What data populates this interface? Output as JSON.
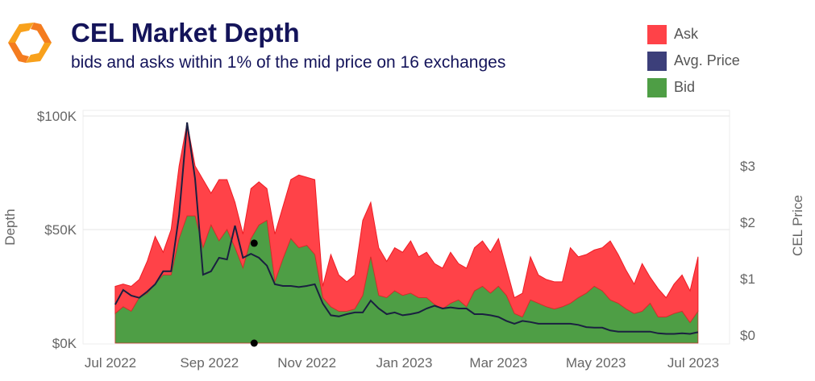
{
  "header": {
    "title": "CEL Market Depth",
    "subtitle": "bids and asks within 1% of the mid price on 16 exchanges"
  },
  "legend": [
    {
      "label": "Ask",
      "color": "#ff4248"
    },
    {
      "label": "Avg. Price",
      "color": "#3c3f7a"
    },
    {
      "label": "Bid",
      "color": "#4e9e45"
    }
  ],
  "chart_data": {
    "type": "area",
    "title": "CEL Market Depth",
    "ylabel": "Depth",
    "y2label": "CEL Price",
    "x_start": "2022-07-04",
    "x_step_days": 5,
    "ylim": [
      0,
      100
    ],
    "y2lim": [
      0,
      3.8
    ],
    "yticks": [
      {
        "value": 0,
        "label": "$0K"
      },
      {
        "value": 50,
        "label": "$50K"
      },
      {
        "value": 100,
        "label": "$100K"
      }
    ],
    "y2ticks": [
      {
        "value": 0,
        "label": "$0"
      },
      {
        "value": 1,
        "label": "$1"
      },
      {
        "value": 2,
        "label": "$2"
      },
      {
        "value": 3,
        "label": "$3"
      }
    ],
    "xticks": [
      {
        "day": -3,
        "label": "Jul 2022"
      },
      {
        "day": 59,
        "label": "Sep 2022"
      },
      {
        "day": 120,
        "label": "Nov 2022"
      },
      {
        "day": 181,
        "label": "Jan 2023"
      },
      {
        "day": 240,
        "label": "Mar 2023"
      },
      {
        "day": 301,
        "label": "May 2023"
      },
      {
        "day": 362,
        "label": "Jul 2023"
      }
    ],
    "series": [
      {
        "name": "Bid",
        "unit": "K USD",
        "stacked": true,
        "values": [
          13,
          16,
          14,
          20,
          22,
          26,
          30,
          30,
          46,
          56,
          56,
          42,
          52,
          45,
          50,
          42,
          33,
          46,
          52,
          54,
          27,
          37,
          46,
          42,
          43,
          39,
          20,
          16,
          14,
          14,
          15,
          21,
          38,
          21,
          20,
          23,
          21,
          22,
          20,
          20,
          17,
          15,
          17.5,
          19,
          16,
          23,
          25,
          22,
          25,
          21,
          13,
          11.5,
          19,
          17.5,
          16,
          15,
          16,
          17.5,
          20,
          22,
          25,
          23,
          19,
          17.5,
          15,
          13,
          14,
          17.5,
          11.5,
          11.5,
          13,
          14,
          9,
          14
        ]
      },
      {
        "name": "Ask",
        "unit": "K USD",
        "stacked": true,
        "values": [
          12,
          10,
          11,
          8,
          14,
          21,
          10,
          20,
          32,
          41,
          22,
          30,
          14,
          27,
          22,
          20,
          15,
          22,
          19,
          14,
          21,
          23,
          26,
          32,
          30,
          33,
          5,
          23,
          16,
          13,
          15,
          33,
          24,
          21,
          16,
          19,
          19,
          23,
          18,
          20,
          18,
          18,
          22.5,
          16,
          17,
          19,
          20,
          18,
          21,
          12,
          7,
          10.5,
          19,
          12.5,
          12,
          12,
          11,
          24.5,
          18,
          17,
          16,
          19,
          26,
          21.5,
          17,
          13,
          21,
          11.5,
          12.5,
          8.5,
          13,
          16,
          14,
          24
        ]
      },
      {
        "name": "Avg. Price",
        "unit": "USD",
        "axis": "right",
        "values": [
          0.57,
          0.83,
          0.73,
          0.69,
          0.8,
          0.93,
          1.16,
          1.16,
          2.16,
          3.8,
          2.8,
          1.1,
          1.16,
          1.4,
          1.37,
          1.97,
          1.4,
          1.47,
          1.4,
          1.26,
          0.93,
          0.9,
          0.9,
          0.88,
          0.9,
          0.93,
          0.59,
          0.38,
          0.36,
          0.4,
          0.43,
          0.43,
          0.64,
          0.5,
          0.4,
          0.43,
          0.38,
          0.4,
          0.43,
          0.5,
          0.55,
          0.5,
          0.52,
          0.5,
          0.5,
          0.4,
          0.4,
          0.38,
          0.35,
          0.28,
          0.23,
          0.28,
          0.26,
          0.23,
          0.23,
          0.23,
          0.23,
          0.23,
          0.21,
          0.17,
          0.16,
          0.16,
          0.11,
          0.09,
          0.09,
          0.09,
          0.09,
          0.09,
          0.06,
          0.05,
          0.05,
          0.06,
          0.05,
          0.08
        ]
      }
    ],
    "markers": [
      {
        "day": 87,
        "depth": 44
      },
      {
        "day": 87,
        "depth": 0
      }
    ],
    "grid": true,
    "legend_position": "top-right"
  }
}
